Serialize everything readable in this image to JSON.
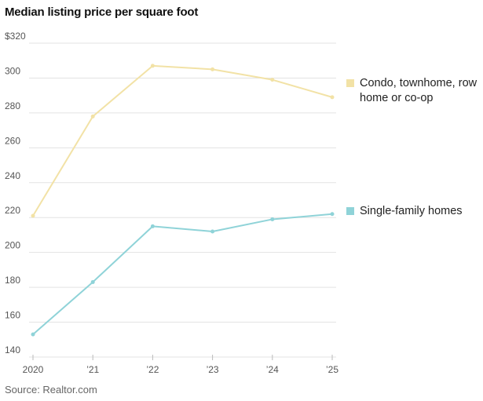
{
  "chart_data": {
    "type": "line",
    "title": "Median listing price per square foot",
    "source": "Source: Realtor.com",
    "categories": [
      "2020",
      "’21",
      "’22",
      "’23",
      "’24",
      "’25"
    ],
    "ylim": [
      140,
      320
    ],
    "yticks": [
      {
        "value": 320,
        "label": "$320"
      },
      {
        "value": 300,
        "label": "300"
      },
      {
        "value": 280,
        "label": "280"
      },
      {
        "value": 260,
        "label": "260"
      },
      {
        "value": 240,
        "label": "240"
      },
      {
        "value": 220,
        "label": "220"
      },
      {
        "value": 200,
        "label": "200"
      },
      {
        "value": 180,
        "label": "180"
      },
      {
        "value": 160,
        "label": "160"
      },
      {
        "value": 140,
        "label": "140"
      }
    ],
    "series": [
      {
        "name": "Condo, townhome, row home or co-op",
        "legend_lines": [
          "Condo, townhome, row",
          "home or co-op"
        ],
        "color": "#f2e2a6",
        "values": [
          221,
          278,
          307,
          305,
          299,
          289
        ]
      },
      {
        "name": "Single-family homes",
        "legend_lines": [
          "Single-family homes"
        ],
        "color": "#8fd3d8",
        "values": [
          153,
          183,
          215,
          212,
          219,
          222
        ]
      }
    ]
  }
}
